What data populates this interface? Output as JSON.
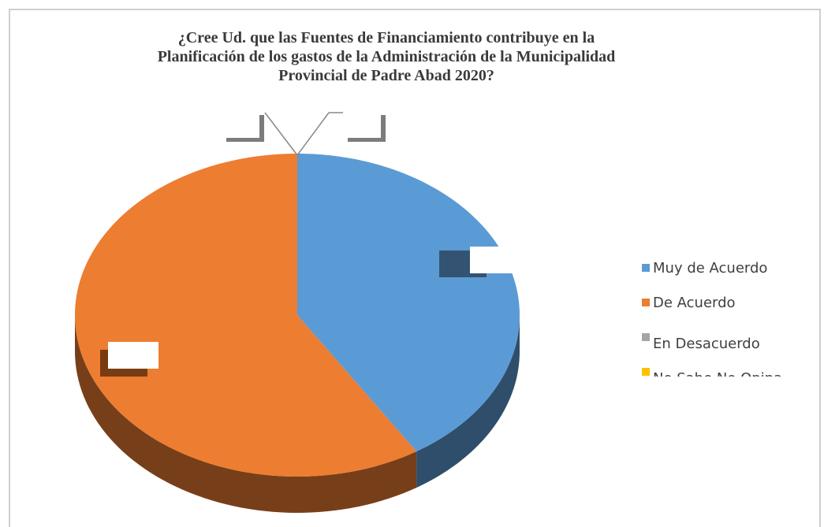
{
  "chart_data": {
    "type": "pie",
    "title": "¿Cree Ud. que las Fuentes de Financiamiento contribuye en la Planificación de los gastos de la Administración de la Municipalidad Provincial de Padre Abad 2020?",
    "categories": [
      "Muy de Acuerdo",
      "De Acuerdo",
      "En Desacuerdo",
      "No Sabe No Opina"
    ],
    "values": [
      41,
      59,
      0,
      0
    ],
    "colors": [
      "#5b9bd5",
      "#ed7d31",
      "#a5a5a5",
      "#ffc000"
    ],
    "legend": "right"
  }
}
